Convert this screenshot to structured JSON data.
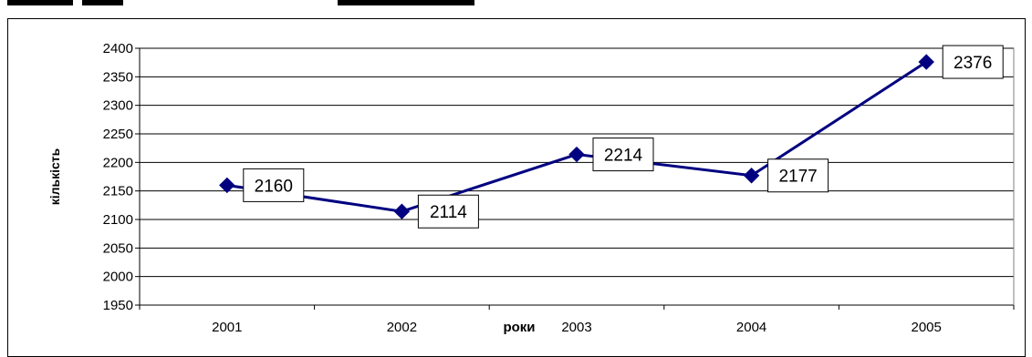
{
  "chart_data": {
    "type": "line",
    "title": "",
    "xlabel": "роки",
    "ylabel": "кількість",
    "categories": [
      "2001",
      "2002",
      "2003",
      "2004",
      "2005"
    ],
    "series": [
      {
        "values": [
          2160,
          2114,
          2214,
          2177,
          2376
        ]
      }
    ],
    "data_labels": [
      "2160",
      "2114",
      "2214",
      "2177",
      "2376"
    ],
    "y_ticks": [
      "2400",
      "2350",
      "2300",
      "2250",
      "2200",
      "2150",
      "2100",
      "2050",
      "2000",
      "1950"
    ],
    "ylim": [
      1950,
      2400
    ],
    "grid": true,
    "legend": "none",
    "marker": "diamond",
    "colors": {
      "series": "#000080",
      "grid": "#000000",
      "frame": "#000000"
    }
  }
}
